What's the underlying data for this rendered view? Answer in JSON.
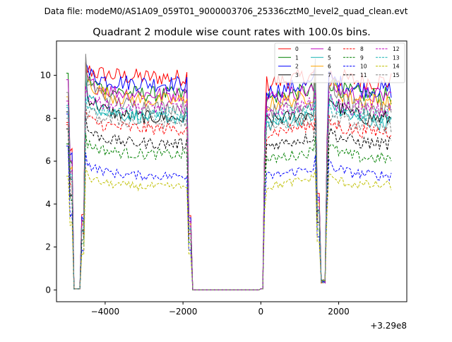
{
  "figure": {
    "suptitle": "Data file: modeM0/AS1A09_059T01_9000003706_25336cztM0_level2_quad_clean.evt"
  },
  "chart_data": {
    "type": "line",
    "title": "Quadrant 2 module wise count rates with 100.0s bins.",
    "xlabel": "",
    "ylabel": "",
    "x_offset_label": "+3.29e8",
    "xlim": [
      -5250,
      3750
    ],
    "ylim": [
      -0.55,
      11.6
    ],
    "x_ticks": [
      {
        "value": -4000,
        "label": "−4000"
      },
      {
        "value": -2000,
        "label": "−2000"
      },
      {
        "value": 0,
        "label": "0"
      },
      {
        "value": 2000,
        "label": "2000"
      }
    ],
    "y_ticks": [
      {
        "value": 0,
        "label": "0"
      },
      {
        "value": 2,
        "label": "2"
      },
      {
        "value": 4,
        "label": "4"
      },
      {
        "value": 6,
        "label": "6"
      },
      {
        "value": 8,
        "label": "8"
      },
      {
        "value": 10,
        "label": "10"
      }
    ],
    "grid": false,
    "legend_position": "top-right",
    "legend_columns": 4,
    "gti_segments": [
      {
        "start": -4650,
        "end": -1850
      },
      {
        "start": 100,
        "end": 1450
      },
      {
        "start": 1750,
        "end": 3350
      }
    ],
    "series": [
      {
        "name": "0",
        "color": "#ff0000",
        "style": "solid",
        "base1": 9.9,
        "base2": 10.0,
        "peak": 10.6,
        "start": 7.7
      },
      {
        "name": "1",
        "color": "#008000",
        "style": "solid",
        "base1": 9.1,
        "base2": 9.3,
        "peak": 10.5,
        "start": 10.1
      },
      {
        "name": "2",
        "color": "#0000ff",
        "style": "solid",
        "base1": 9.6,
        "base2": 9.6,
        "peak": 10.6,
        "start": 8.2
      },
      {
        "name": "3",
        "color": "#000000",
        "style": "solid",
        "base1": 8.0,
        "base2": 8.2,
        "peak": 10.0,
        "start": 8.3
      },
      {
        "name": "4",
        "color": "#bf00bf",
        "style": "solid",
        "base1": 9.1,
        "base2": 9.3,
        "peak": 10.3,
        "start": 9.8
      },
      {
        "name": "5",
        "color": "#17b3b3",
        "style": "solid",
        "base1": 8.0,
        "base2": 8.0,
        "peak": 10.0,
        "start": 8.5
      },
      {
        "name": "6",
        "color": "#ffa500",
        "style": "solid",
        "base1": 8.8,
        "base2": 9.0,
        "peak": 10.6,
        "start": 9.0
      },
      {
        "name": "7",
        "color": "#808080",
        "style": "solid",
        "base1": 8.5,
        "base2": 8.6,
        "peak": 11.0,
        "start": 9.2
      },
      {
        "name": "8",
        "color": "#ff0000",
        "style": "dashed",
        "base1": 7.5,
        "base2": 7.6,
        "peak": 8.4,
        "start": 7.8
      },
      {
        "name": "9",
        "color": "#008000",
        "style": "dashed",
        "base1": 6.3,
        "base2": 6.3,
        "peak": 7.3,
        "start": 6.8
      },
      {
        "name": "10",
        "color": "#0000ff",
        "style": "dashed",
        "base1": 5.3,
        "base2": 5.5,
        "peak": 6.4,
        "start": 6.7
      },
      {
        "name": "11",
        "color": "#000000",
        "style": "dashed",
        "base1": 6.8,
        "base2": 7.0,
        "peak": 8.1,
        "start": 7.5
      },
      {
        "name": "12",
        "color": "#bf00bf",
        "style": "dashed",
        "base1": 8.5,
        "base2": 8.6,
        "peak": 9.5,
        "start": 8.8
      },
      {
        "name": "13",
        "color": "#17b3b3",
        "style": "dashed",
        "base1": 8.2,
        "base2": 8.3,
        "peak": 9.0,
        "start": 8.6
      },
      {
        "name": "14",
        "color": "#bfbf00",
        "style": "dashed",
        "base1": 4.8,
        "base2": 5.0,
        "peak": 5.7,
        "start": 5.3
      },
      {
        "name": "15",
        "color": "#808080",
        "style": "dashed",
        "base1": 7.8,
        "base2": 7.9,
        "peak": 8.7,
        "start": 8.0
      }
    ]
  }
}
